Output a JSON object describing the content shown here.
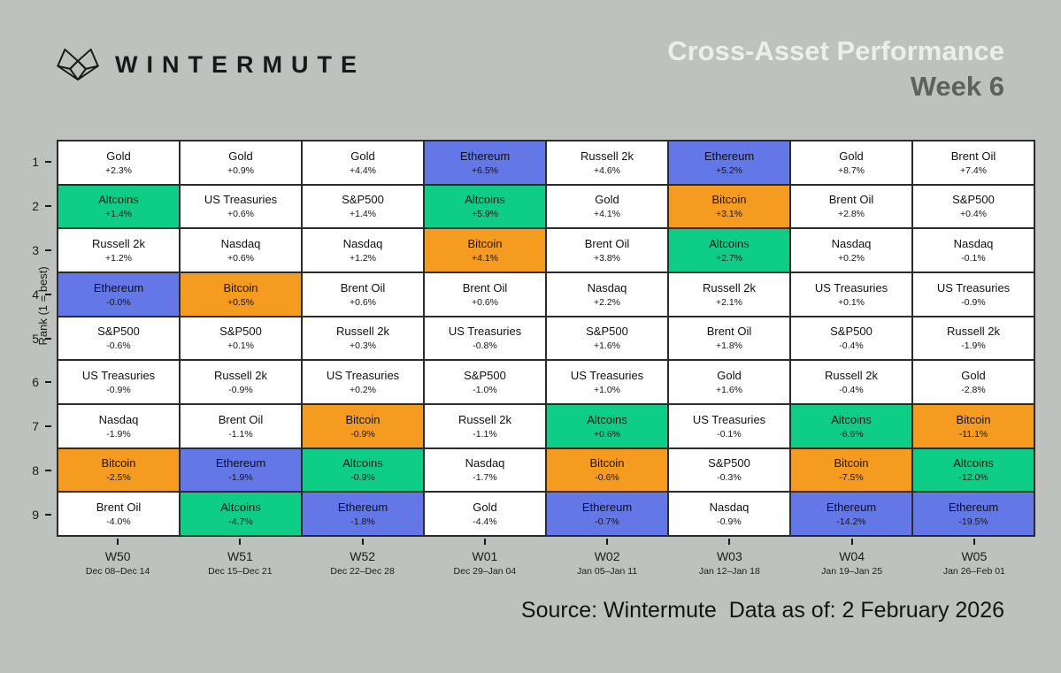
{
  "header": {
    "brand": "WINTERMUTE",
    "title": "Cross-Asset Performance",
    "subtitle": "Week 6"
  },
  "footer": {
    "source": "Source: Wintermute  Data as of: 2 February 2026"
  },
  "palette": {
    "background": "#bdc2be",
    "white": "#ffffff",
    "green": "#0ecd86",
    "orange": "#f59b20",
    "blue": "#6377e6",
    "grid_line": "#2b2b2b"
  },
  "chart_data": {
    "type": "heatmap",
    "title": "Cross-Asset Performance Week 6",
    "ylabel": "Rank (1 = best)",
    "ranks": [
      1,
      2,
      3,
      4,
      5,
      6,
      7,
      8,
      9
    ],
    "color_legend": {
      "green": "Altcoins",
      "orange": "Bitcoin",
      "blue": "Ethereum",
      "white": "traditional assets"
    },
    "columns": [
      {
        "week": "W50",
        "dates": "Dec 08–Dec 14",
        "cells": [
          {
            "asset": "Gold",
            "change": "+2.3%",
            "color": "white"
          },
          {
            "asset": "Altcoins",
            "change": "+1.4%",
            "color": "green"
          },
          {
            "asset": "Russell 2k",
            "change": "+1.2%",
            "color": "white"
          },
          {
            "asset": "Ethereum",
            "change": "-0.0%",
            "color": "blue"
          },
          {
            "asset": "S&P500",
            "change": "-0.6%",
            "color": "white"
          },
          {
            "asset": "US Treasuries",
            "change": "-0.9%",
            "color": "white"
          },
          {
            "asset": "Nasdaq",
            "change": "-1.9%",
            "color": "white"
          },
          {
            "asset": "Bitcoin",
            "change": "-2.5%",
            "color": "orange"
          },
          {
            "asset": "Brent Oil",
            "change": "-4.0%",
            "color": "white"
          }
        ]
      },
      {
        "week": "W51",
        "dates": "Dec 15–Dec 21",
        "cells": [
          {
            "asset": "Gold",
            "change": "+0.9%",
            "color": "white"
          },
          {
            "asset": "US Treasuries",
            "change": "+0.6%",
            "color": "white"
          },
          {
            "asset": "Nasdaq",
            "change": "+0.6%",
            "color": "white"
          },
          {
            "asset": "Bitcoin",
            "change": "+0.5%",
            "color": "orange"
          },
          {
            "asset": "S&P500",
            "change": "+0.1%",
            "color": "white"
          },
          {
            "asset": "Russell 2k",
            "change": "-0.9%",
            "color": "white"
          },
          {
            "asset": "Brent Oil",
            "change": "-1.1%",
            "color": "white"
          },
          {
            "asset": "Ethereum",
            "change": "-1.9%",
            "color": "blue"
          },
          {
            "asset": "Altcoins",
            "change": "-4.7%",
            "color": "green"
          }
        ]
      },
      {
        "week": "W52",
        "dates": "Dec 22–Dec 28",
        "cells": [
          {
            "asset": "Gold",
            "change": "+4.4%",
            "color": "white"
          },
          {
            "asset": "S&P500",
            "change": "+1.4%",
            "color": "white"
          },
          {
            "asset": "Nasdaq",
            "change": "+1.2%",
            "color": "white"
          },
          {
            "asset": "Brent Oil",
            "change": "+0.6%",
            "color": "white"
          },
          {
            "asset": "Russell 2k",
            "change": "+0.3%",
            "color": "white"
          },
          {
            "asset": "US Treasuries",
            "change": "+0.2%",
            "color": "white"
          },
          {
            "asset": "Bitcoin",
            "change": "-0.9%",
            "color": "orange"
          },
          {
            "asset": "Altcoins",
            "change": "-0.9%",
            "color": "green"
          },
          {
            "asset": "Ethereum",
            "change": "-1.8%",
            "color": "blue"
          }
        ]
      },
      {
        "week": "W01",
        "dates": "Dec 29–Jan 04",
        "cells": [
          {
            "asset": "Ethereum",
            "change": "+6.5%",
            "color": "blue"
          },
          {
            "asset": "Altcoins",
            "change": "+5.9%",
            "color": "green"
          },
          {
            "asset": "Bitcoin",
            "change": "+4.1%",
            "color": "orange"
          },
          {
            "asset": "Brent Oil",
            "change": "+0.6%",
            "color": "white"
          },
          {
            "asset": "US Treasuries",
            "change": "-0.8%",
            "color": "white"
          },
          {
            "asset": "S&P500",
            "change": "-1.0%",
            "color": "white"
          },
          {
            "asset": "Russell 2k",
            "change": "-1.1%",
            "color": "white"
          },
          {
            "asset": "Nasdaq",
            "change": "-1.7%",
            "color": "white"
          },
          {
            "asset": "Gold",
            "change": "-4.4%",
            "color": "white"
          }
        ]
      },
      {
        "week": "W02",
        "dates": "Jan 05–Jan 11",
        "cells": [
          {
            "asset": "Russell 2k",
            "change": "+4.6%",
            "color": "white"
          },
          {
            "asset": "Gold",
            "change": "+4.1%",
            "color": "white"
          },
          {
            "asset": "Brent Oil",
            "change": "+3.8%",
            "color": "white"
          },
          {
            "asset": "Nasdaq",
            "change": "+2.2%",
            "color": "white"
          },
          {
            "asset": "S&P500",
            "change": "+1.6%",
            "color": "white"
          },
          {
            "asset": "US Treasuries",
            "change": "+1.0%",
            "color": "white"
          },
          {
            "asset": "Altcoins",
            "change": "+0.6%",
            "color": "green"
          },
          {
            "asset": "Bitcoin",
            "change": "-0.6%",
            "color": "orange"
          },
          {
            "asset": "Ethereum",
            "change": "-0.7%",
            "color": "blue"
          }
        ]
      },
      {
        "week": "W03",
        "dates": "Jan 12–Jan 18",
        "cells": [
          {
            "asset": "Ethereum",
            "change": "+5.2%",
            "color": "blue"
          },
          {
            "asset": "Bitcoin",
            "change": "+3.1%",
            "color": "orange"
          },
          {
            "asset": "Altcoins",
            "change": "+2.7%",
            "color": "green"
          },
          {
            "asset": "Russell 2k",
            "change": "+2.1%",
            "color": "white"
          },
          {
            "asset": "Brent Oil",
            "change": "+1.8%",
            "color": "white"
          },
          {
            "asset": "Gold",
            "change": "+1.6%",
            "color": "white"
          },
          {
            "asset": "US Treasuries",
            "change": "-0.1%",
            "color": "white"
          },
          {
            "asset": "S&P500",
            "change": "-0.3%",
            "color": "white"
          },
          {
            "asset": "Nasdaq",
            "change": "-0.9%",
            "color": "white"
          }
        ]
      },
      {
        "week": "W04",
        "dates": "Jan 19–Jan 25",
        "cells": [
          {
            "asset": "Gold",
            "change": "+8.7%",
            "color": "white"
          },
          {
            "asset": "Brent Oil",
            "change": "+2.8%",
            "color": "white"
          },
          {
            "asset": "Nasdaq",
            "change": "+0.2%",
            "color": "white"
          },
          {
            "asset": "US Treasuries",
            "change": "+0.1%",
            "color": "white"
          },
          {
            "asset": "S&P500",
            "change": "-0.4%",
            "color": "white"
          },
          {
            "asset": "Russell 2k",
            "change": "-0.4%",
            "color": "white"
          },
          {
            "asset": "Altcoins",
            "change": "-6.6%",
            "color": "green"
          },
          {
            "asset": "Bitcoin",
            "change": "-7.5%",
            "color": "orange"
          },
          {
            "asset": "Ethereum",
            "change": "-14.2%",
            "color": "blue"
          }
        ]
      },
      {
        "week": "W05",
        "dates": "Jan 26–Feb 01",
        "cells": [
          {
            "asset": "Brent Oil",
            "change": "+7.4%",
            "color": "white"
          },
          {
            "asset": "S&P500",
            "change": "+0.4%",
            "color": "white"
          },
          {
            "asset": "Nasdaq",
            "change": "-0.1%",
            "color": "white"
          },
          {
            "asset": "US Treasuries",
            "change": "-0.9%",
            "color": "white"
          },
          {
            "asset": "Russell 2k",
            "change": "-1.9%",
            "color": "white"
          },
          {
            "asset": "Gold",
            "change": "-2.8%",
            "color": "white"
          },
          {
            "asset": "Bitcoin",
            "change": "-11.1%",
            "color": "orange"
          },
          {
            "asset": "Altcoins",
            "change": "-12.0%",
            "color": "green"
          },
          {
            "asset": "Ethereum",
            "change": "-19.5%",
            "color": "blue"
          }
        ]
      }
    ]
  }
}
